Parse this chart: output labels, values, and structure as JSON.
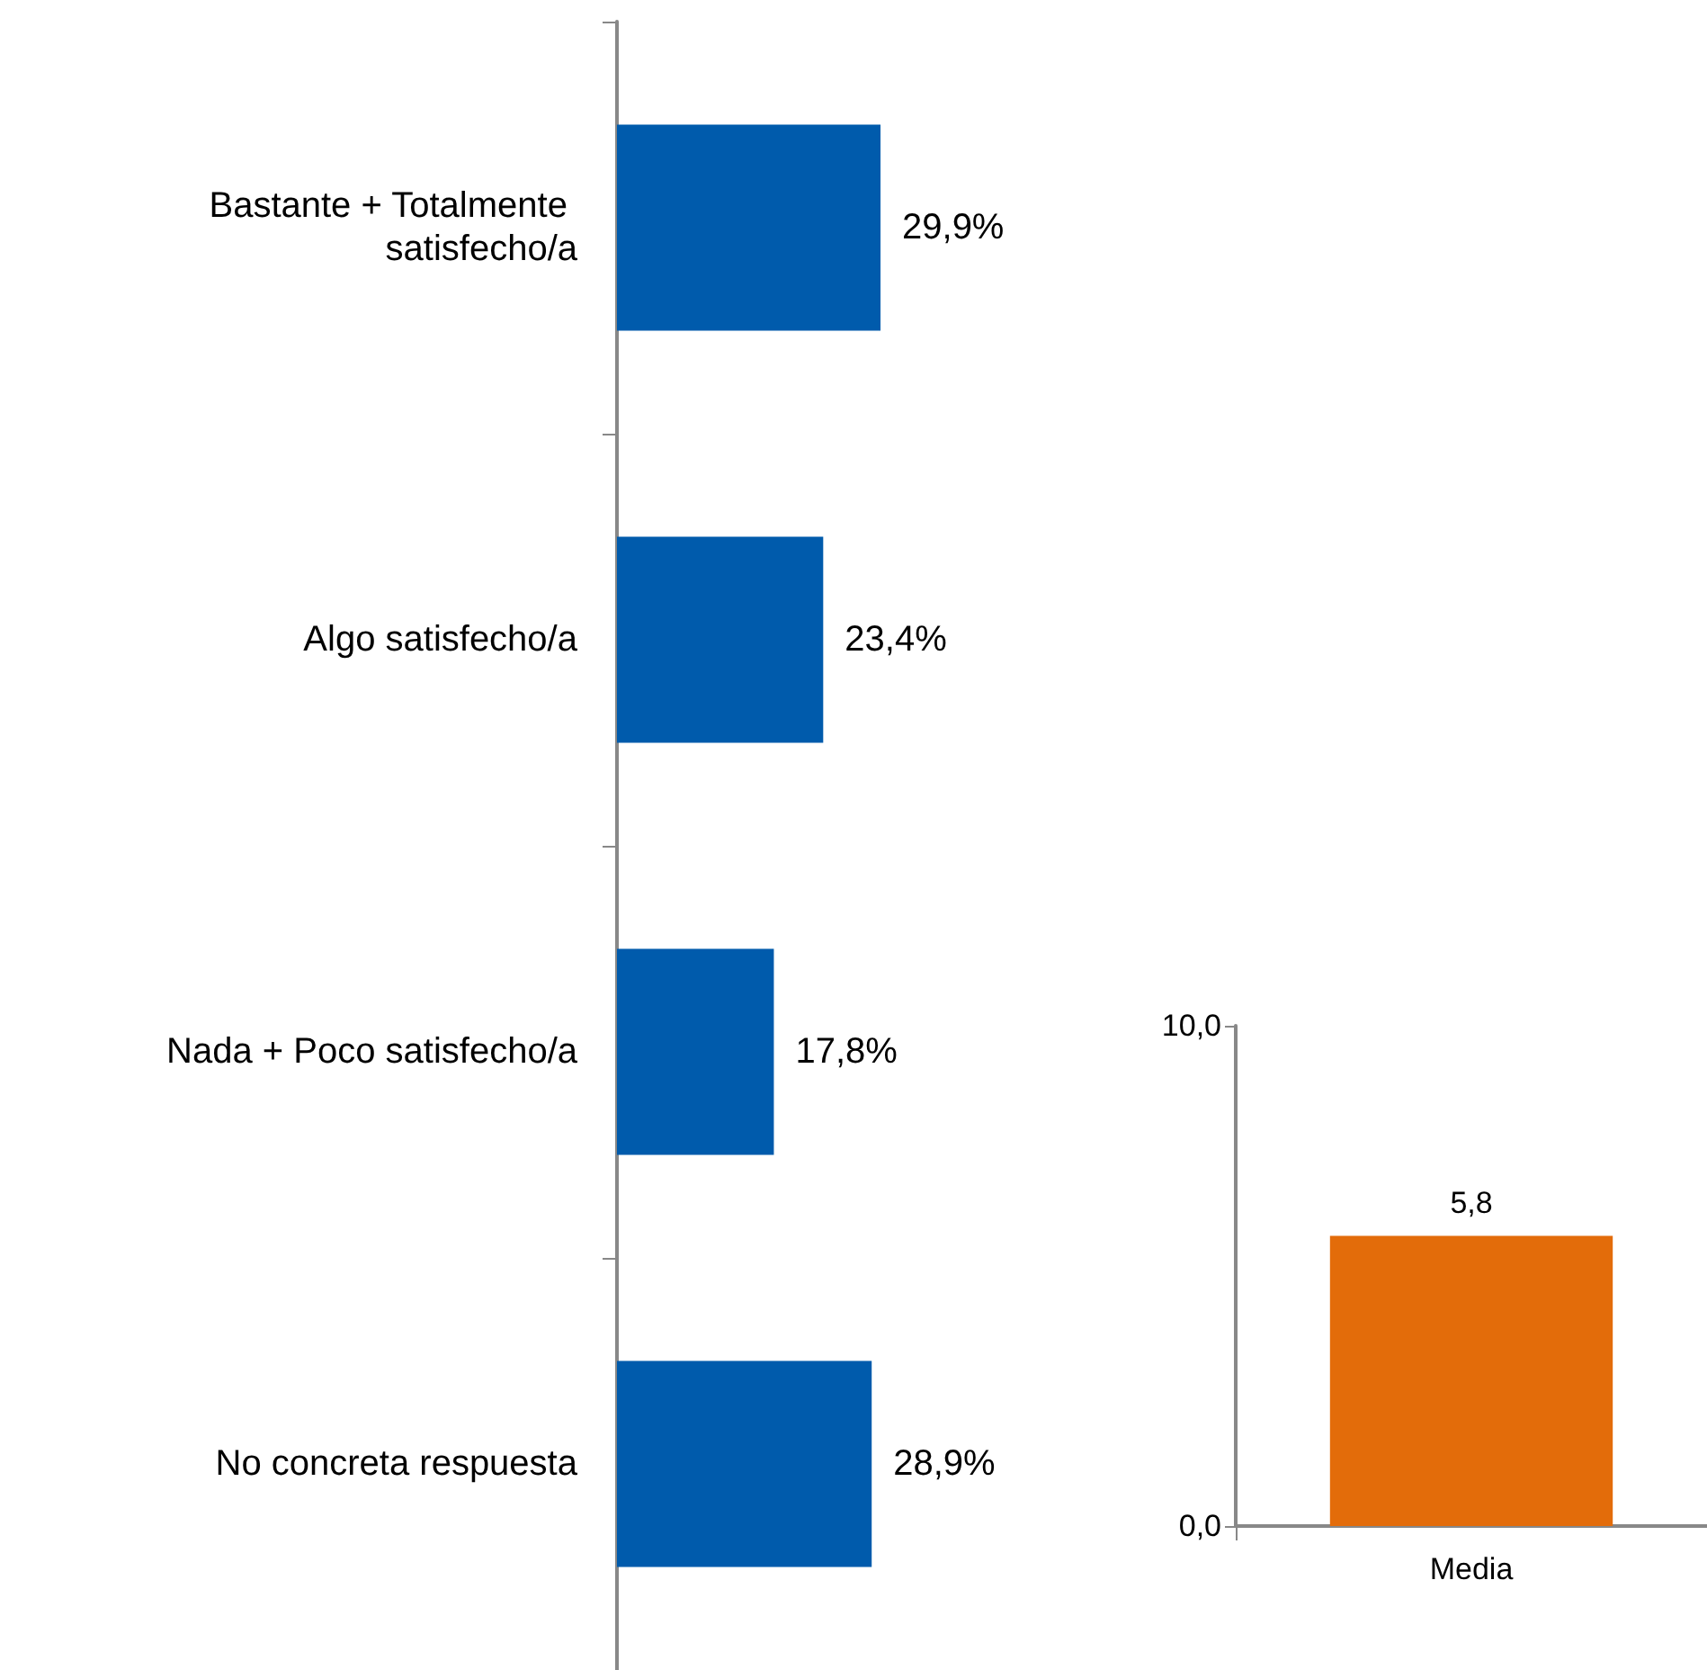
{
  "chart_data": [
    {
      "type": "bar",
      "orientation": "horizontal",
      "categories": [
        "Bastante + Totalmente satisfecho/a",
        "Algo satisfecho/a",
        "Nada + Poco satisfecho/a",
        "No concreta respuesta"
      ],
      "values": [
        29.9,
        23.4,
        17.8,
        28.9
      ],
      "value_labels": [
        "29,9%",
        "23,4%",
        "17,8%",
        "28,9%"
      ],
      "color": "#005bac",
      "tick_labels": "y",
      "grid": false
    },
    {
      "type": "bar",
      "categories": [
        "Media"
      ],
      "values": [
        5.8
      ],
      "value_labels": [
        "5,8"
      ],
      "color": "#e36c0a",
      "ylim": [
        0,
        10
      ],
      "yticks": [
        {
          "value": 0,
          "label": "0,0"
        },
        {
          "value": 10,
          "label": "10,0"
        }
      ],
      "grid": false
    }
  ]
}
